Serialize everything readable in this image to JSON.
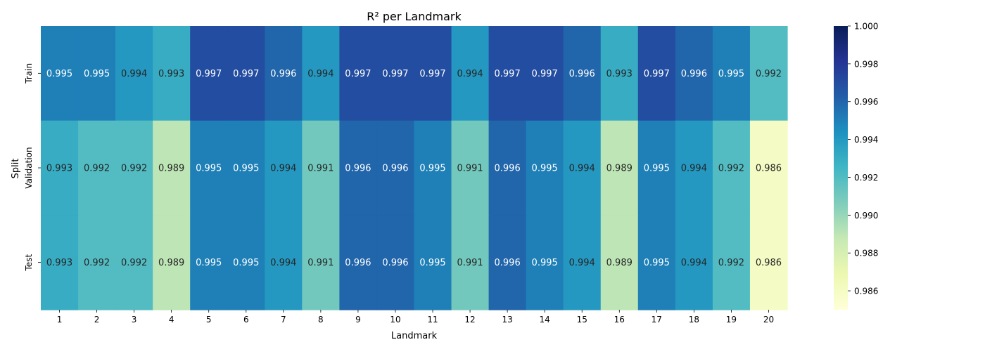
{
  "chart_data": {
    "type": "heatmap",
    "title": "R² per Landmark",
    "xlabel": "Landmark",
    "ylabel": "Split",
    "x_categories": [
      "1",
      "2",
      "3",
      "4",
      "5",
      "6",
      "7",
      "8",
      "9",
      "10",
      "11",
      "12",
      "13",
      "14",
      "15",
      "16",
      "17",
      "18",
      "19",
      "20"
    ],
    "y_categories": [
      "Train",
      "Validation",
      "Test"
    ],
    "values": [
      [
        0.995,
        0.995,
        0.994,
        0.993,
        0.997,
        0.997,
        0.996,
        0.994,
        0.997,
        0.997,
        0.997,
        0.994,
        0.997,
        0.997,
        0.996,
        0.993,
        0.997,
        0.996,
        0.995,
        0.992
      ],
      [
        0.993,
        0.992,
        0.992,
        0.989,
        0.995,
        0.995,
        0.994,
        0.991,
        0.996,
        0.996,
        0.995,
        0.991,
        0.996,
        0.995,
        0.994,
        0.989,
        0.995,
        0.994,
        0.992,
        0.986
      ],
      [
        0.993,
        0.992,
        0.992,
        0.989,
        0.995,
        0.995,
        0.994,
        0.991,
        0.996,
        0.996,
        0.995,
        0.991,
        0.996,
        0.995,
        0.994,
        0.989,
        0.995,
        0.994,
        0.992,
        0.986
      ]
    ],
    "annotation_labels": [
      [
        "0.995",
        "0.995",
        "0.994",
        "0.993",
        "0.997",
        "0.997",
        "0.996",
        "0.994",
        "0.997",
        "0.997",
        "0.997",
        "0.994",
        "0.997",
        "0.997",
        "0.996",
        "0.993",
        "0.997",
        "0.996",
        "0.995",
        "0.992"
      ],
      [
        "0.993",
        "0.992",
        "0.992",
        "0.989",
        "0.995",
        "0.995",
        "0.994",
        "0.991",
        "0.996",
        "0.996",
        "0.995",
        "0.991",
        "0.996",
        "0.995",
        "0.994",
        "0.989",
        "0.995",
        "0.994",
        "0.992",
        "0.986"
      ],
      [
        "0.993",
        "0.992",
        "0.992",
        "0.989",
        "0.995",
        "0.995",
        "0.994",
        "0.991",
        "0.996",
        "0.996",
        "0.995",
        "0.991",
        "0.996",
        "0.995",
        "0.994",
        "0.989",
        "0.995",
        "0.994",
        "0.992",
        "0.986"
      ]
    ],
    "colormap": "YlGnBu",
    "color_range": [
      0.985,
      1.0
    ],
    "colorbar_ticks": [
      0.986,
      0.988,
      0.99,
      0.992,
      0.994,
      0.996,
      0.998,
      1.0
    ],
    "colorbar_tick_labels": [
      "0.986",
      "0.988",
      "0.990",
      "0.992",
      "0.994",
      "0.996",
      "0.998",
      "1.000"
    ],
    "legend_placement": "right",
    "grid": false
  }
}
